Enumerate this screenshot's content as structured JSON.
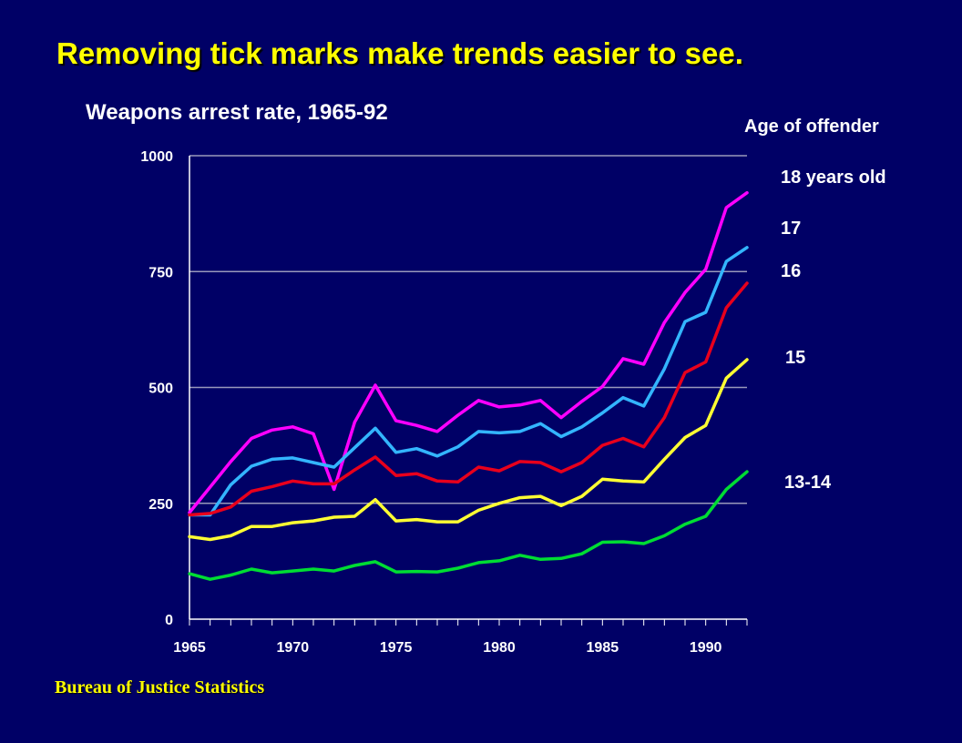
{
  "slide_title": "Removing tick marks make trends easier to see.",
  "source": "Bureau of Justice Statistics",
  "legend_title": "Age of offender",
  "colors": {
    "background": "#000066",
    "slide_title": "#FFFF00",
    "axis": "#FFFFFF",
    "grid": "#9999BB"
  },
  "chart_data": {
    "type": "line",
    "title": "Weapons arrest rate, 1965-92",
    "xlabel": "",
    "ylabel": "",
    "xlim": [
      1965,
      1992
    ],
    "ylim": [
      0,
      1000
    ],
    "y_ticks": [
      0,
      250,
      500,
      750,
      1000
    ],
    "y_tick_labels": [
      "0",
      "250",
      "500",
      "750",
      "1000"
    ],
    "x_ticks": [
      1965,
      1970,
      1975,
      1980,
      1985,
      1990
    ],
    "x_tick_labels": [
      "1965",
      "1970",
      "1975",
      "1980",
      "1985",
      "1990"
    ],
    "grid": true,
    "legend_placement": "right",
    "x": [
      1965,
      1966,
      1967,
      1968,
      1969,
      1970,
      1971,
      1972,
      1973,
      1974,
      1975,
      1976,
      1977,
      1978,
      1979,
      1980,
      1981,
      1982,
      1983,
      1984,
      1985,
      1986,
      1987,
      1988,
      1989,
      1990,
      1991,
      1992
    ],
    "series": [
      {
        "name": "18 years old",
        "color": "#FF00FF",
        "values": [
          230,
          285,
          340,
          390,
          408,
          415,
          400,
          280,
          425,
          505,
          428,
          418,
          405,
          440,
          472,
          458,
          462,
          472,
          435,
          470,
          502,
          562,
          550,
          640,
          705,
          755,
          888,
          920
        ]
      },
      {
        "name": "17",
        "color": "#33B5FF",
        "values": [
          225,
          225,
          290,
          330,
          345,
          348,
          338,
          328,
          370,
          412,
          360,
          368,
          352,
          372,
          405,
          402,
          405,
          422,
          394,
          415,
          445,
          478,
          460,
          540,
          642,
          662,
          772,
          802
        ]
      },
      {
        "name": "16",
        "color": "#E8001C",
        "values": [
          225,
          228,
          242,
          276,
          286,
          298,
          292,
          292,
          322,
          350,
          310,
          314,
          298,
          296,
          328,
          320,
          340,
          338,
          318,
          338,
          375,
          390,
          372,
          435,
          532,
          555,
          672,
          725
        ]
      },
      {
        "name": "15",
        "color": "#FFFF33",
        "values": [
          178,
          172,
          180,
          200,
          200,
          208,
          212,
          220,
          222,
          258,
          212,
          215,
          210,
          210,
          235,
          250,
          262,
          265,
          245,
          265,
          302,
          298,
          296,
          345,
          392,
          418,
          520,
          560
        ]
      },
      {
        "name": "13-14",
        "color": "#00DD33",
        "values": [
          98,
          86,
          95,
          108,
          100,
          104,
          108,
          104,
          116,
          124,
          102,
          103,
          102,
          110,
          122,
          126,
          138,
          129,
          131,
          141,
          166,
          167,
          163,
          180,
          205,
          222,
          280,
          318
        ]
      }
    ]
  }
}
